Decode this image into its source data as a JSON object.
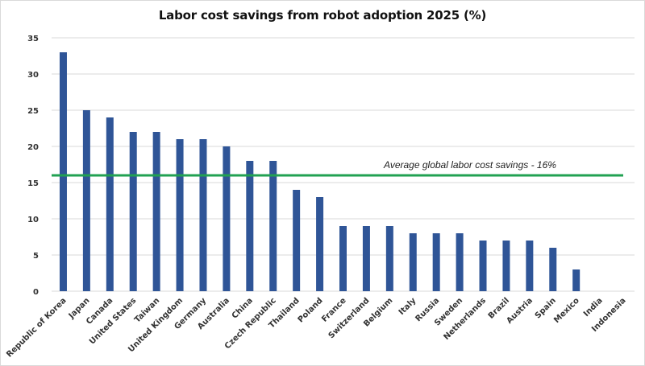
{
  "chart_data": {
    "type": "bar",
    "title": "Labor cost savings from robot adoption 2025 (%)",
    "xlabel": "",
    "ylabel": "",
    "ylim": [
      0,
      35
    ],
    "yticks": [
      0,
      5,
      10,
      15,
      20,
      25,
      30,
      35
    ],
    "grid": true,
    "legend": "none",
    "bar_color": "#2f5597",
    "categories": [
      "Republic of Korea",
      "Japan",
      "Canada",
      "United States",
      "Taiwan",
      "United Kingdom",
      "Germany",
      "Australia",
      "China",
      "Czech Republic",
      "Thailand",
      "Poland",
      "France",
      "Switzerland",
      "Belgium",
      "Italy",
      "Russia",
      "Sweden",
      "Netherlands",
      "Brazil",
      "Austria",
      "Spain",
      "Mexico",
      "India",
      "Indonesia"
    ],
    "values": [
      33,
      25,
      24,
      22,
      22,
      21,
      21,
      20,
      18,
      18,
      14,
      13,
      9,
      9,
      9,
      8,
      8,
      8,
      7,
      7,
      7,
      6,
      3,
      0,
      0
    ],
    "reference_line": {
      "value": 16,
      "label": "Average global labor cost savings - 16%",
      "color": "#21a152"
    }
  }
}
